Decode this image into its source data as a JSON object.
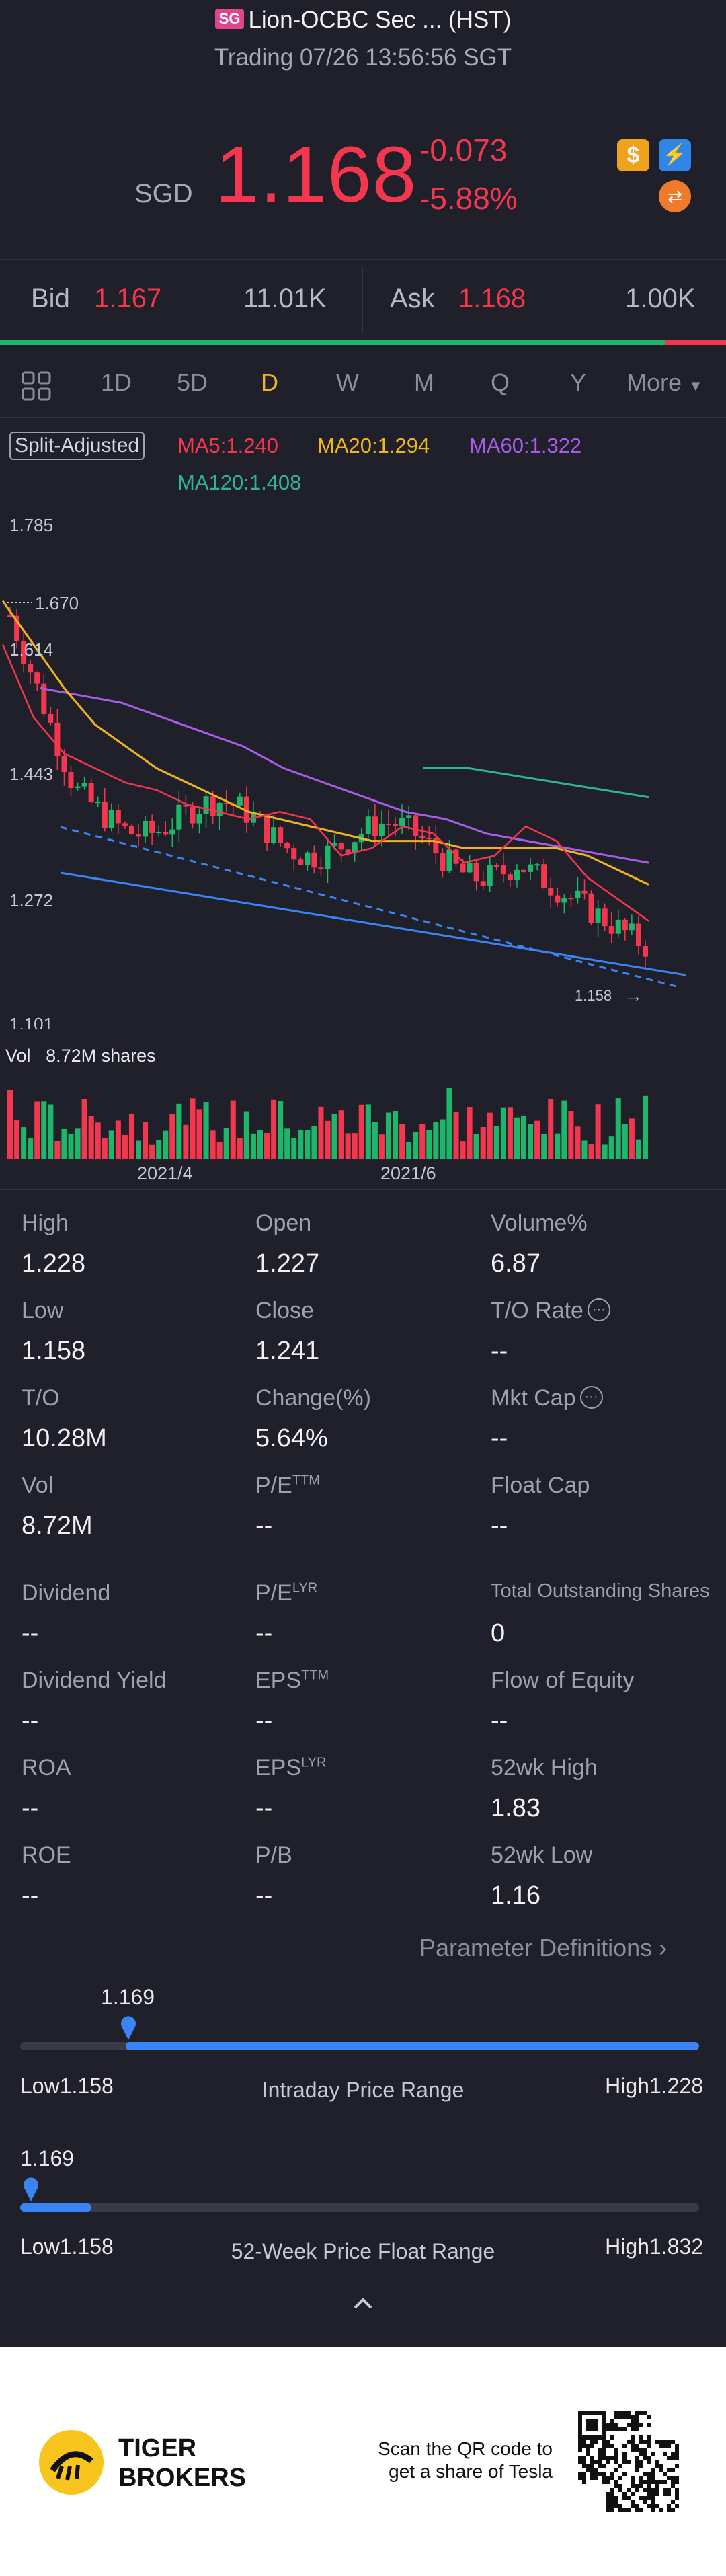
{
  "header": {
    "market_badge": "SG",
    "title": "Lion-OCBC Sec ... (HST)",
    "subtitle": "Trading 07/26 13:56:56 SGT"
  },
  "quote": {
    "currency": "SGD",
    "price": "1.168",
    "change": "-0.073",
    "change_pct": "-5.88%",
    "badge_icons": [
      "dollar-icon",
      "lightning-icon",
      "trade-swap-icon"
    ]
  },
  "bid_ask": {
    "bid_label": "Bid",
    "bid_price": "1.167",
    "bid_size": "11.01K",
    "ask_label": "Ask",
    "ask_price": "1.168",
    "ask_size": "1.00K"
  },
  "period_tabs": [
    "1D",
    "5D",
    "D",
    "W",
    "M",
    "Q",
    "Y"
  ],
  "active_tab": "D",
  "more_label": "More",
  "chart_legend": {
    "split_adjusted": "Split-Adjusted",
    "ma5": "MA5:1.240",
    "ma20": "MA20:1.294",
    "ma60": "MA60:1.322",
    "ma120": "MA120:1.408"
  },
  "colors": {
    "up": "#1db66a",
    "down": "#f5364f",
    "accent": "#3a84f4",
    "ma5": "#f5364f",
    "ma20": "#f0b51c",
    "ma60": "#a85ce8",
    "ma120": "#2fb39a"
  },
  "chart_data": {
    "type": "line",
    "title": "",
    "y_ticks": [
      "1.785",
      "1.670",
      "1.614",
      "1.443",
      "1.272",
      "1.101"
    ],
    "price_marker": "1.158",
    "x_ticks": [
      "2021/4",
      "2021/6"
    ],
    "ylim": [
      1.101,
      1.785
    ],
    "grid": false,
    "volume_label": "Vol",
    "volume_value": "8.72M shares",
    "series": [
      {
        "name": "MA5",
        "values": [
          1.62,
          1.52,
          1.47,
          1.45,
          1.43,
          1.42,
          1.4,
          1.39,
          1.38,
          1.39,
          1.38,
          1.33,
          1.34,
          1.37,
          1.36,
          1.32,
          1.33,
          1.37,
          1.35,
          1.3,
          1.27,
          1.24
        ]
      },
      {
        "name": "MA20",
        "values": [
          1.68,
          1.62,
          1.56,
          1.51,
          1.48,
          1.45,
          1.43,
          1.41,
          1.39,
          1.38,
          1.37,
          1.36,
          1.35,
          1.35,
          1.35,
          1.34,
          1.34,
          1.34,
          1.34,
          1.33,
          1.31,
          1.29
        ]
      },
      {
        "name": "MA60",
        "values": [
          1.56,
          1.55,
          1.54,
          1.52,
          1.5,
          1.48,
          1.45,
          1.43,
          1.41,
          1.39,
          1.38,
          1.36,
          1.35,
          1.34,
          1.33,
          1.32
        ]
      },
      {
        "name": "MA120",
        "values": [
          1.45,
          1.45,
          1.44,
          1.43,
          1.42,
          1.41
        ]
      }
    ]
  },
  "stats": [
    {
      "label": "High",
      "value": "1.228"
    },
    {
      "label": "Open",
      "value": "1.227"
    },
    {
      "label": "Volume%",
      "value": "6.87"
    },
    {
      "label": "Low",
      "value": "1.158"
    },
    {
      "label": "Close",
      "value": "1.241"
    },
    {
      "label": "T/O Rate",
      "value": "--"
    },
    {
      "label": "T/O",
      "value": "10.28M"
    },
    {
      "label": "Change(%)",
      "value": "5.64%"
    },
    {
      "label": "Mkt Cap",
      "value": "--"
    },
    {
      "label": "Vol",
      "value": "8.72M"
    },
    {
      "label": "P/E",
      "sup": "TTM",
      "value": "--"
    },
    {
      "label": "Float Cap",
      "value": "--"
    },
    {
      "label": "Dividend",
      "value": "--"
    },
    {
      "label": "P/E",
      "sup": "LYR",
      "value": "--"
    },
    {
      "label": "Total Outstanding Shares",
      "value": "0"
    },
    {
      "label": "Dividend Yield",
      "value": "--"
    },
    {
      "label": "EPS",
      "sup": "TTM",
      "value": "--"
    },
    {
      "label": "Flow of Equity",
      "value": "--"
    },
    {
      "label": "ROA",
      "value": "--"
    },
    {
      "label": "EPS",
      "sup": "LYR",
      "value": "--"
    },
    {
      "label": "52wk High",
      "value": "1.83"
    },
    {
      "label": "ROE",
      "value": "--"
    },
    {
      "label": "P/B",
      "value": "--"
    },
    {
      "label": "52wk Low",
      "value": "1.16"
    }
  ],
  "param_defs": "Parameter Definitions",
  "intraday_range": {
    "current": "1.169",
    "low": "Low1.158",
    "title": "Intraday Price Range",
    "high": "High1.228",
    "position": 0.155
  },
  "week52_range": {
    "current": "1.169",
    "low": "Low1.158",
    "title": "52-Week Price Float Range",
    "high": "High1.832",
    "position": 0.016
  },
  "footer": {
    "brand_line1": "TIGER",
    "brand_line2": "BROKERS",
    "promo_line1": "Scan the QR code to",
    "promo_line2": "get a share of Tesla"
  }
}
